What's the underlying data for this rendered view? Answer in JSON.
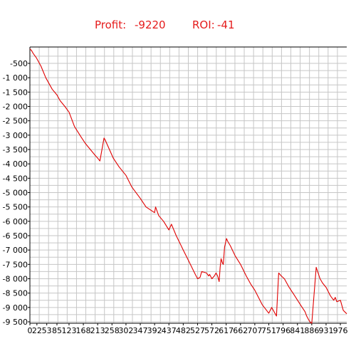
{
  "header": {
    "profit_label": "Profit:",
    "profit_value": "-9220",
    "roi_label": "ROI:",
    "roi_value": "-41"
  },
  "colors": {
    "line": "#e00000",
    "grid": "#c6c6c6",
    "text": "#e51c1c"
  },
  "chart_data": {
    "type": "line",
    "title": "",
    "xlabel": "",
    "ylabel": "",
    "grid": true,
    "ylim": [
      -9550,
      70
    ],
    "xlim": [
      0,
      996
    ],
    "y_ticks": [
      -500,
      -1000,
      -1500,
      -2000,
      -2500,
      -3000,
      -3500,
      -4000,
      -4500,
      -5000,
      -5500,
      -6000,
      -6500,
      -7000,
      -7500,
      -8000,
      -8500,
      -9000,
      -9500
    ],
    "y_tick_labels": [
      "-500",
      "-1 000",
      "-1 500",
      "-2 000",
      "-2 500",
      "-3 000",
      "-3 500",
      "-4 000",
      "-4 500",
      "-5 000",
      "-5 500",
      "-6 000",
      "-6 500",
      "-7 000",
      "-7 500",
      "-8 000",
      "-8 500",
      "-9 000",
      "-9 500"
    ],
    "x_ticks": [
      0,
      22,
      53,
      85,
      123,
      168,
      213,
      258,
      302,
      347,
      392,
      437,
      482,
      527,
      572,
      617,
      662,
      707,
      751,
      796,
      841,
      886,
      931,
      976
    ],
    "x_tick_labels": [
      "0",
      "22",
      "53",
      "85",
      "123",
      "168",
      "213",
      "258",
      "302",
      "347",
      "392",
      "437",
      "482",
      "527",
      "572",
      "617",
      "662",
      "707",
      "751",
      "796",
      "841",
      "886",
      "931",
      "976"
    ],
    "series": [
      {
        "x": [
          0,
          5,
          10,
          20,
          35,
          50,
          70,
          85,
          95,
          110,
          123,
          140,
          160,
          175,
          190,
          205,
          213,
          220,
          233,
          236,
          250,
          262,
          280,
          302,
          320,
          347,
          365,
          392,
          395,
          405,
          420,
          437,
          445,
          460,
          482,
          500,
          520,
          527,
          535,
          540,
          555,
          562,
          565,
          572,
          580,
          585,
          590,
          595,
          598,
          601,
          605,
          608,
          612,
          618,
          622,
          630,
          645,
          662,
          680,
          695,
          707,
          730,
          751,
          760,
          775,
          782,
          786,
          790,
          800,
          815,
          830,
          850,
          865,
          870,
          875,
          880,
          886,
          900,
          912,
          920,
          931,
          945,
          955,
          960,
          965,
          976,
          985,
          996
        ],
        "y": [
          0,
          -50,
          -150,
          -300,
          -600,
          -1000,
          -1400,
          -1600,
          -1800,
          -2000,
          -2200,
          -2700,
          -3050,
          -3300,
          -3500,
          -3700,
          -3800,
          -3900,
          -3100,
          -3150,
          -3500,
          -3800,
          -4100,
          -4400,
          -4800,
          -5200,
          -5500,
          -5700,
          -5500,
          -5800,
          -6000,
          -6300,
          -6100,
          -6500,
          -7000,
          -7400,
          -7850,
          -8000,
          -7950,
          -7750,
          -7800,
          -7900,
          -7850,
          -8000,
          -7900,
          -7800,
          -7900,
          -8100,
          -7600,
          -7300,
          -7450,
          -7500,
          -6900,
          -6600,
          -6700,
          -6850,
          -7200,
          -7500,
          -7900,
          -8200,
          -8400,
          -8900,
          -9200,
          -9000,
          -9300,
          -7800,
          -7850,
          -7900,
          -8000,
          -8300,
          -8550,
          -8900,
          -9150,
          -9300,
          -9400,
          -9500,
          -9550,
          -7600,
          -8000,
          -8150,
          -8300,
          -8600,
          -8750,
          -8650,
          -8800,
          -8750,
          -9100,
          -9220
        ]
      }
    ]
  }
}
